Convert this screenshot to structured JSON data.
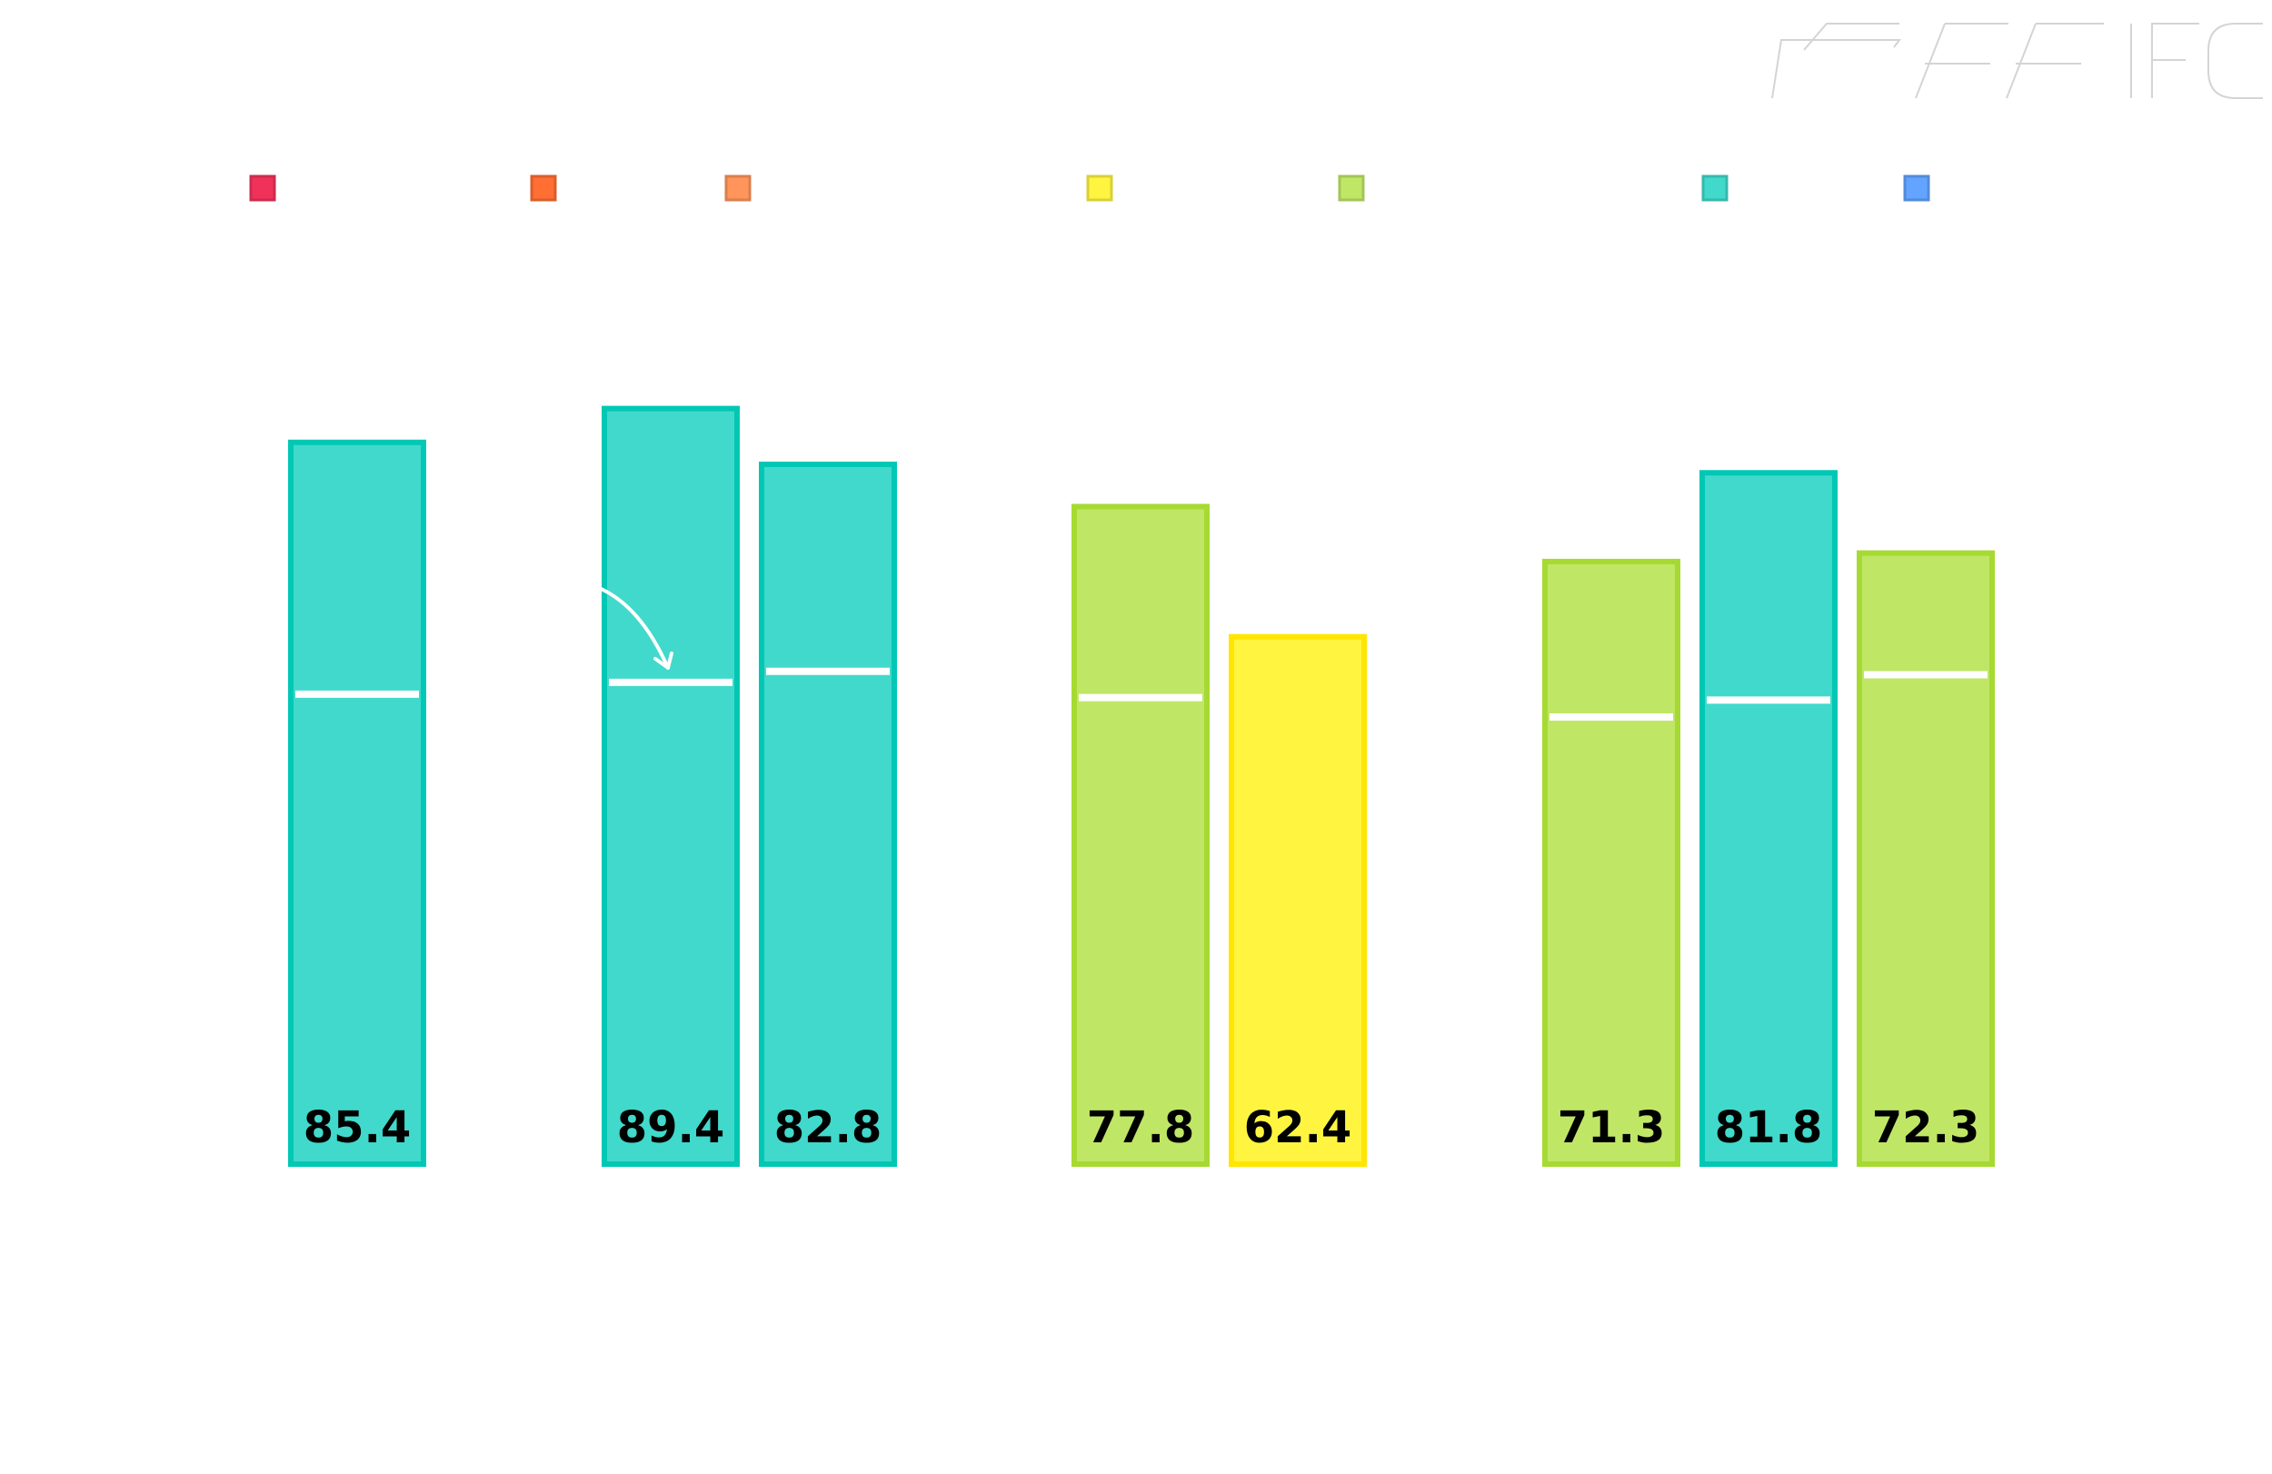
{
  "chart_data": {
    "type": "bar",
    "title": "",
    "xlabel": "",
    "ylabel": "",
    "ylim": [
      0,
      100
    ],
    "grid": false,
    "legend": {
      "position": "top",
      "colors": [
        "#f0325a",
        "#ff6e32",
        "#ff955a",
        "#fff541",
        "#c0e666",
        "#41d9cb",
        "#62a4ff"
      ]
    },
    "groups": [
      {
        "bars": [
          {
            "value": 85.4,
            "label": "85.4",
            "marker": 55.6,
            "color": "#41d9cb",
            "stroke": "#00c8b4"
          }
        ]
      },
      {
        "bars": [
          {
            "value": 89.4,
            "label": "89.4",
            "marker": 57.0,
            "color": "#41d9cb",
            "stroke": "#00c8b4"
          },
          {
            "value": 82.8,
            "label": "82.8",
            "marker": 58.3,
            "color": "#41d9cb",
            "stroke": "#00c8b4"
          }
        ]
      },
      {
        "bars": [
          {
            "value": 77.8,
            "label": "77.8",
            "marker": 55.2,
            "color": "#c0e666",
            "stroke": "#a6da32"
          },
          {
            "value": 62.4,
            "label": "62.4",
            "marker": null,
            "color": "#fff541",
            "stroke": "#ffe600"
          }
        ]
      },
      {
        "bars": [
          {
            "value": 71.3,
            "label": "71.3",
            "marker": 52.9,
            "color": "#c0e666",
            "stroke": "#a6da32"
          },
          {
            "value": 81.8,
            "label": "81.8",
            "marker": 54.9,
            "color": "#41d9cb",
            "stroke": "#00c8b4"
          },
          {
            "value": 72.3,
            "label": "72.3",
            "marker": 57.9,
            "color": "#c0e666",
            "stroke": "#a6da32"
          }
        ]
      }
    ],
    "annotations": [
      "arrow-to-marker"
    ]
  }
}
